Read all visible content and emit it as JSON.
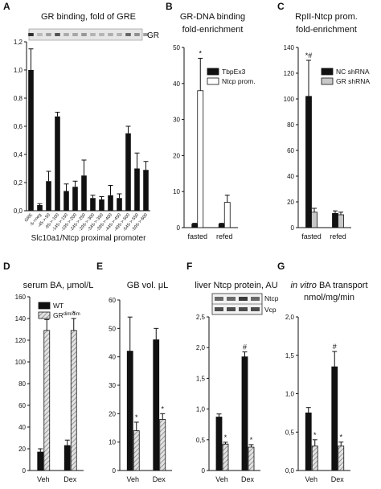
{
  "colors": {
    "black": "#111111",
    "white": "#ffffff",
    "gray": "#c8c8c8",
    "hatch": "#bdbdbd",
    "blot_bg": "#e6e6e6",
    "blot_band": "#303030"
  },
  "chart_data": [
    {
      "panel": "A",
      "type": "bar",
      "title": "GR binding, fold of GRE",
      "xlabel": "Slc10a1/Ntcp proximal promoter",
      "ylabel": "",
      "ylim": [
        0,
        1.2
      ],
      "yticks": [
        "0,0",
        "0,2",
        "0,4",
        "0,6",
        "0,8",
        "1,0",
        "1,2"
      ],
      "categories": [
        "GRE",
        "-5->neg",
        "-45->-50",
        "-95->-100",
        "-145->-150",
        "-195->-200",
        "-245->-250",
        "-295->-300",
        "-345->-350",
        "-395->-400",
        "-445->-450",
        "-495->-500",
        "-545->-550",
        "-595->-600"
      ],
      "values": [
        1.0,
        0.04,
        0.21,
        0.67,
        0.14,
        0.17,
        0.25,
        0.09,
        0.08,
        0.11,
        0.09,
        0.55,
        0.3,
        0.29
      ],
      "errors": [
        0.15,
        0.01,
        0.07,
        0.03,
        0.05,
        0.04,
        0.11,
        0.02,
        0.02,
        0.07,
        0.03,
        0.05,
        0.11,
        0.06
      ],
      "blot_label": "GR"
    },
    {
      "panel": "B",
      "type": "bar",
      "title": "GR-DNA binding\nfold-enrichment",
      "ylim": [
        0,
        50
      ],
      "yticks": [
        "0",
        "10",
        "20",
        "30",
        "40",
        "50"
      ],
      "categories": [
        "fasted",
        "refed"
      ],
      "series": [
        {
          "name": "TbpEx3",
          "color": "#111111",
          "values": [
            1.0,
            1.0
          ],
          "errors": [
            0.2,
            0.2
          ]
        },
        {
          "name": "Ntcp prom.",
          "color": "#ffffff",
          "values": [
            38,
            7
          ],
          "errors": [
            9,
            2
          ]
        }
      ],
      "annotations": [
        {
          "text": "*",
          "category": "fasted",
          "series": "Ntcp prom."
        }
      ],
      "legend": "top-right"
    },
    {
      "panel": "C",
      "type": "bar",
      "title": "RpII-Ntcp prom.\nfold-enrichment",
      "ylim": [
        0,
        140
      ],
      "yticks": [
        "0",
        "20",
        "40",
        "60",
        "80",
        "100",
        "120",
        "140"
      ],
      "categories": [
        "fasted",
        "refed"
      ],
      "series": [
        {
          "name": "NC shRNA",
          "color": "#111111",
          "values": [
            102,
            11
          ],
          "errors": [
            28,
            2
          ]
        },
        {
          "name": "GR shRNA",
          "color": "#c8c8c8",
          "values": [
            12,
            10
          ],
          "errors": [
            3,
            2
          ]
        }
      ],
      "annotations": [
        {
          "text": "*#",
          "category": "fasted",
          "series": "NC shRNA"
        }
      ],
      "legend": "top-right"
    },
    {
      "panel": "D",
      "type": "bar",
      "title": "serum BA, μmol/L",
      "ylim": [
        0,
        160
      ],
      "yticks": [
        "0",
        "20",
        "40",
        "60",
        "80",
        "100",
        "120",
        "140",
        "160"
      ],
      "categories": [
        "Veh",
        "Dex"
      ],
      "series": [
        {
          "name": "WT",
          "color": "#111111",
          "values": [
            17,
            23
          ],
          "errors": [
            3,
            5
          ]
        },
        {
          "name": "GR",
          "superscript": "dim/dim",
          "color": "hatch",
          "values": [
            129,
            129
          ],
          "errors": [
            10,
            11
          ]
        }
      ],
      "annotations": [
        {
          "text": "*",
          "category": "Veh",
          "series": "GR"
        },
        {
          "text": "*",
          "category": "Dex",
          "series": "GR"
        }
      ],
      "legend": "top-left"
    },
    {
      "panel": "E",
      "type": "bar",
      "title": "GB vol. μL",
      "ylim": [
        0,
        60
      ],
      "yticks": [
        "0",
        "10",
        "20",
        "30",
        "40",
        "50",
        "60"
      ],
      "categories": [
        "Veh",
        "Dex"
      ],
      "series": [
        {
          "name": "WT",
          "color": "#111111",
          "values": [
            42,
            46
          ],
          "errors": [
            12,
            4
          ]
        },
        {
          "name": "GR",
          "color": "hatch",
          "values": [
            14,
            18
          ],
          "errors": [
            3,
            2
          ]
        }
      ],
      "annotations": [
        {
          "text": "*",
          "category": "Veh",
          "series": "GR"
        },
        {
          "text": "*",
          "category": "Dex",
          "series": "GR"
        }
      ]
    },
    {
      "panel": "F",
      "type": "bar",
      "title": "liver Ntcp protein, AU",
      "ylim": [
        0,
        2.5
      ],
      "yticks": [
        "0",
        "0,5",
        "1,0",
        "1,5",
        "2,0",
        "2,5"
      ],
      "categories": [
        "Veh",
        "Dex"
      ],
      "series": [
        {
          "name": "WT",
          "color": "#111111",
          "values": [
            0.87,
            1.85
          ],
          "errors": [
            0.05,
            0.08
          ]
        },
        {
          "name": "GR",
          "color": "hatch",
          "values": [
            0.43,
            0.38
          ],
          "errors": [
            0.03,
            0.04
          ]
        }
      ],
      "annotations": [
        {
          "text": "*",
          "category": "Veh",
          "series": "GR"
        },
        {
          "text": "#",
          "category": "Dex",
          "series": "WT"
        },
        {
          "text": "*",
          "category": "Dex",
          "series": "GR"
        }
      ],
      "blot_labels": [
        "Ntcp",
        "Vcp"
      ]
    },
    {
      "panel": "G",
      "type": "bar",
      "title_italic": "in vitro",
      "title": " BA transport\nnmol/mg/min",
      "ylim": [
        0,
        2.0
      ],
      "yticks": [
        "0,0",
        "0,5",
        "1,0",
        "1,5",
        "2,0"
      ],
      "categories": [
        "Veh",
        "Dex"
      ],
      "series": [
        {
          "name": "WT",
          "color": "#111111",
          "values": [
            0.75,
            1.35
          ],
          "errors": [
            0.07,
            0.2
          ]
        },
        {
          "name": "GR",
          "color": "hatch",
          "values": [
            0.32,
            0.32
          ],
          "errors": [
            0.08,
            0.05
          ]
        }
      ],
      "annotations": [
        {
          "text": "*",
          "category": "Veh",
          "series": "GR"
        },
        {
          "text": "#",
          "category": "Dex",
          "series": "WT"
        },
        {
          "text": "*",
          "category": "Dex",
          "series": "GR"
        }
      ]
    }
  ]
}
